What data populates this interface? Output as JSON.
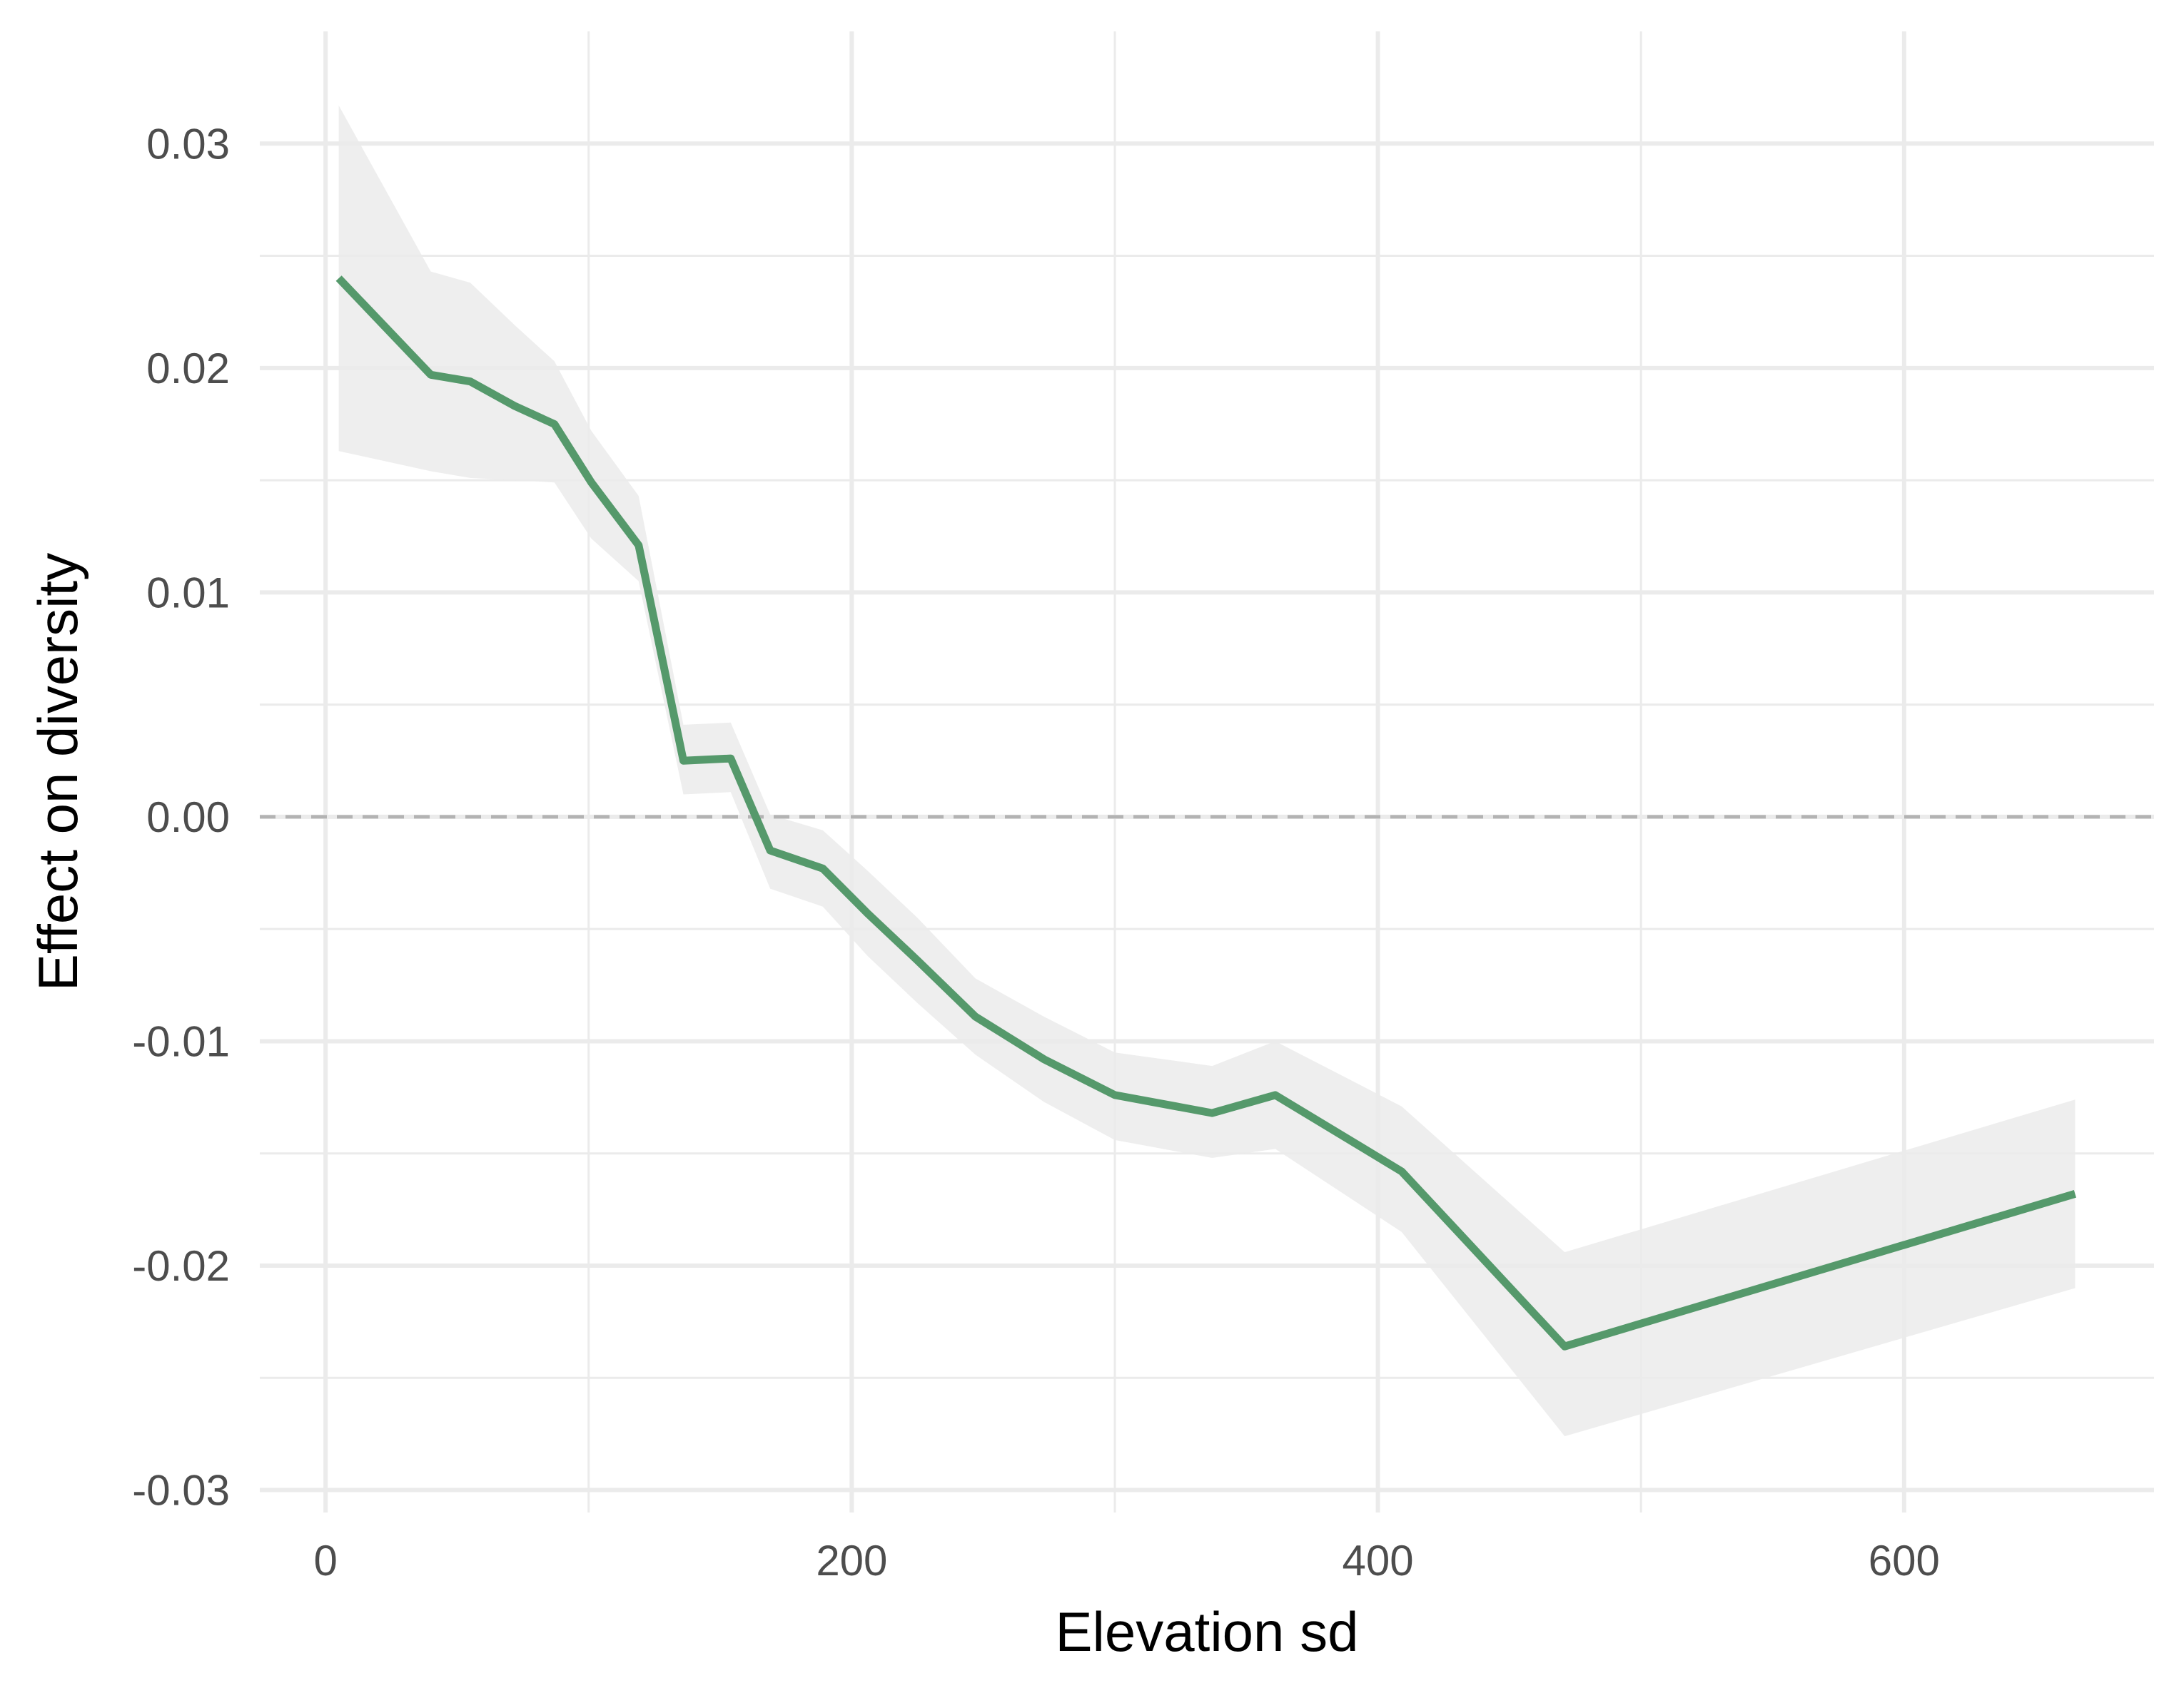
{
  "chart_data": {
    "type": "line",
    "title": "",
    "xlabel": "Elevation sd",
    "ylabel": "Effect on diversity",
    "xlim": [
      -25,
      695
    ],
    "ylim": [
      -0.031,
      0.035
    ],
    "x_ticks": [
      0,
      200,
      400,
      600
    ],
    "x_tick_labels": [
      "0",
      "200",
      "400",
      "600"
    ],
    "x_minor_ticks": [
      100,
      300,
      500
    ],
    "y_ticks": [
      -0.03,
      -0.02,
      -0.01,
      0.0,
      0.01,
      0.02,
      0.03
    ],
    "y_tick_labels": [
      "-0.03",
      "-0.02",
      "-0.01",
      "0.00",
      "0.01",
      "0.02",
      "0.03"
    ],
    "y_minor_ticks": [
      -0.025,
      -0.015,
      -0.005,
      0.005,
      0.015,
      0.025
    ],
    "grid": true,
    "reference_line": {
      "y": 0,
      "style": "dashed",
      "color": "#b3b3b3"
    },
    "colors": {
      "line": "#55996b",
      "ribbon": "#ebebeb",
      "grid": "#ebebeb"
    },
    "series": [
      {
        "x": [
          5,
          40,
          55,
          72,
          87,
          101,
          119,
          136,
          154,
          169,
          189,
          206,
          225,
          247,
          273,
          300,
          337,
          361,
          409,
          471,
          665
        ],
        "y": [
          0.024,
          0.0197,
          0.0194,
          0.0183,
          0.0175,
          0.0149,
          0.0121,
          0.0025,
          0.0026,
          -0.0015,
          -0.0023,
          -0.0043,
          -0.0064,
          -0.0089,
          -0.0108,
          -0.0124,
          -0.0132,
          -0.0124,
          -0.0158,
          -0.0236,
          -0.0168
        ],
        "lower": [
          0.0163,
          0.0154,
          0.0151,
          0.015,
          0.0149,
          0.0124,
          0.0105,
          0.001,
          0.0011,
          -0.0032,
          -0.004,
          -0.0062,
          -0.0083,
          -0.0106,
          -0.0127,
          -0.0144,
          -0.0152,
          -0.0148,
          -0.0185,
          -0.0276,
          -0.021
        ],
        "upper": [
          0.0317,
          0.0243,
          0.0238,
          0.0219,
          0.0203,
          0.0172,
          0.0143,
          0.0041,
          0.0042,
          0.0001,
          -0.0006,
          -0.0024,
          -0.0045,
          -0.0072,
          -0.0089,
          -0.0105,
          -0.0111,
          -0.01,
          -0.0129,
          -0.0194,
          -0.0126
        ]
      }
    ]
  }
}
